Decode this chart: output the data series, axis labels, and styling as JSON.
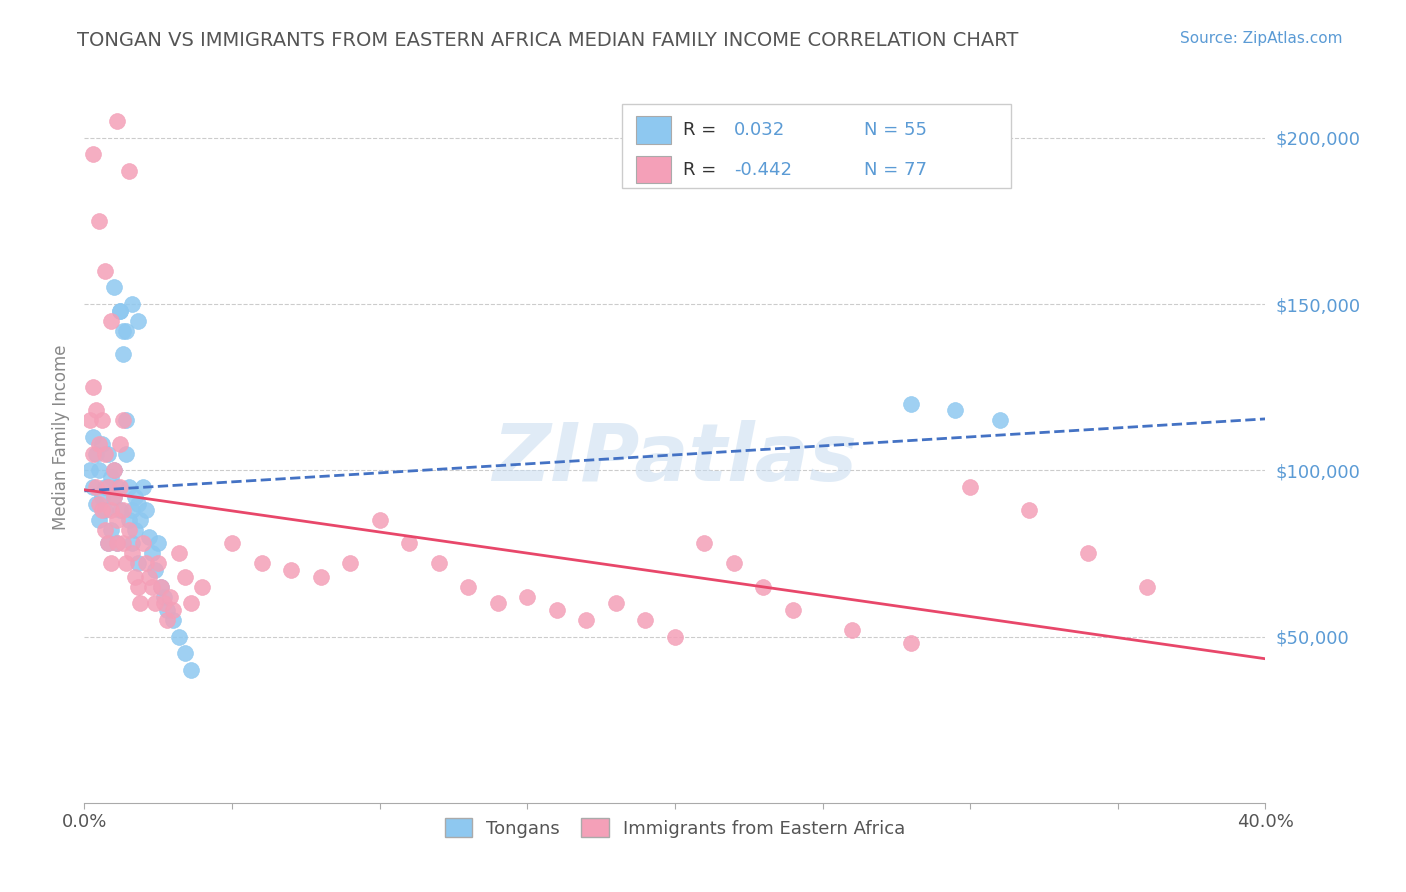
{
  "title": "TONGAN VS IMMIGRANTS FROM EASTERN AFRICA MEDIAN FAMILY INCOME CORRELATION CHART",
  "source": "Source: ZipAtlas.com",
  "ylabel": "Median Family Income",
  "xlim": [
    0.0,
    0.4
  ],
  "ylim": [
    0,
    220000
  ],
  "xticks": [
    0.0,
    0.05,
    0.1,
    0.15,
    0.2,
    0.25,
    0.3,
    0.35,
    0.4
  ],
  "ytick_labels": [
    "$50,000",
    "$100,000",
    "$150,000",
    "$200,000"
  ],
  "ytick_values": [
    50000,
    100000,
    150000,
    200000
  ],
  "tongan_color": "#8EC8F0",
  "tongan_line_color": "#4472C4",
  "eastern_color": "#F4A0B8",
  "eastern_line_color": "#E8476A",
  "tongan_R": "0.032",
  "tongan_N": 55,
  "eastern_R": "-0.442",
  "eastern_N": 77,
  "tongan_x": [
    0.002,
    0.003,
    0.003,
    0.004,
    0.004,
    0.005,
    0.005,
    0.006,
    0.006,
    0.007,
    0.007,
    0.008,
    0.008,
    0.009,
    0.009,
    0.01,
    0.01,
    0.011,
    0.011,
    0.012,
    0.012,
    0.013,
    0.013,
    0.014,
    0.014,
    0.015,
    0.015,
    0.016,
    0.016,
    0.017,
    0.017,
    0.018,
    0.018,
    0.019,
    0.02,
    0.021,
    0.022,
    0.023,
    0.024,
    0.025,
    0.026,
    0.027,
    0.028,
    0.03,
    0.032,
    0.034,
    0.036,
    0.28,
    0.295,
    0.31,
    0.01,
    0.012,
    0.014,
    0.016,
    0.018
  ],
  "tongan_y": [
    100000,
    110000,
    95000,
    105000,
    90000,
    100000,
    85000,
    108000,
    92000,
    95000,
    88000,
    105000,
    78000,
    98000,
    82000,
    100000,
    92000,
    95000,
    78000,
    88000,
    148000,
    142000,
    135000,
    105000,
    115000,
    85000,
    95000,
    88000,
    78000,
    92000,
    82000,
    90000,
    72000,
    85000,
    95000,
    88000,
    80000,
    75000,
    70000,
    78000,
    65000,
    62000,
    58000,
    55000,
    50000,
    45000,
    40000,
    120000,
    118000,
    115000,
    155000,
    148000,
    142000,
    150000,
    145000
  ],
  "eastern_x": [
    0.002,
    0.003,
    0.003,
    0.004,
    0.004,
    0.005,
    0.005,
    0.006,
    0.006,
    0.007,
    0.007,
    0.008,
    0.008,
    0.009,
    0.009,
    0.01,
    0.01,
    0.011,
    0.011,
    0.012,
    0.012,
    0.013,
    0.013,
    0.014,
    0.015,
    0.016,
    0.017,
    0.018,
    0.019,
    0.02,
    0.021,
    0.022,
    0.023,
    0.024,
    0.025,
    0.026,
    0.027,
    0.028,
    0.029,
    0.03,
    0.032,
    0.034,
    0.036,
    0.04,
    0.05,
    0.06,
    0.07,
    0.08,
    0.09,
    0.1,
    0.11,
    0.12,
    0.13,
    0.14,
    0.15,
    0.16,
    0.17,
    0.18,
    0.19,
    0.2,
    0.21,
    0.22,
    0.23,
    0.24,
    0.26,
    0.28,
    0.3,
    0.32,
    0.34,
    0.36,
    0.003,
    0.005,
    0.007,
    0.009,
    0.011,
    0.013,
    0.015
  ],
  "eastern_y": [
    115000,
    125000,
    105000,
    118000,
    95000,
    108000,
    90000,
    115000,
    88000,
    105000,
    82000,
    95000,
    78000,
    88000,
    72000,
    100000,
    92000,
    85000,
    78000,
    95000,
    108000,
    88000,
    78000,
    72000,
    82000,
    75000,
    68000,
    65000,
    60000,
    78000,
    72000,
    68000,
    65000,
    60000,
    72000,
    65000,
    60000,
    55000,
    62000,
    58000,
    75000,
    68000,
    60000,
    65000,
    78000,
    72000,
    70000,
    68000,
    72000,
    85000,
    78000,
    72000,
    65000,
    60000,
    62000,
    58000,
    55000,
    60000,
    55000,
    50000,
    78000,
    72000,
    65000,
    58000,
    52000,
    48000,
    95000,
    88000,
    75000,
    65000,
    195000,
    175000,
    160000,
    145000,
    205000,
    115000,
    190000
  ],
  "watermark_text": "ZIPatlas",
  "title_color": "#555555",
  "axis_label_color": "#5B9BD5",
  "grid_color": "#CCCCCC",
  "background_color": "#FFFFFF"
}
